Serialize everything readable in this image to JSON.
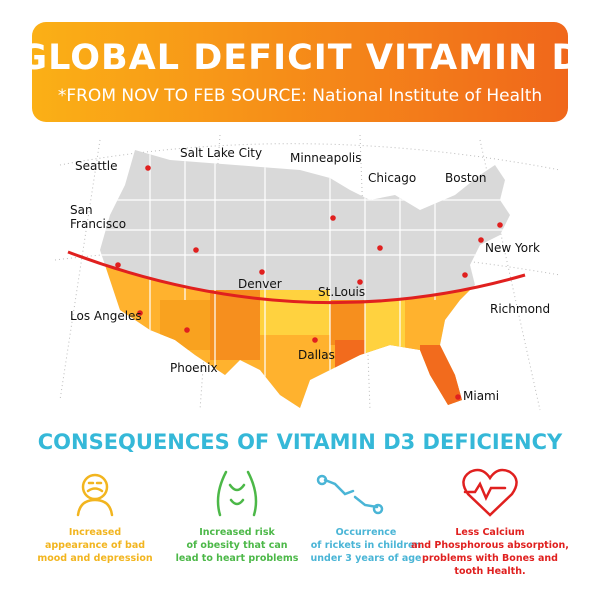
{
  "header": {
    "title": "GLOBAL DEFICIT VITAMIN D",
    "subtitle": "*FROM NOV TO FEB SOURCE: National Institute of Health"
  },
  "map": {
    "cities": [
      {
        "label": "Seattle"
      },
      {
        "label": "Salt Lake City"
      },
      {
        "label": "Minneapolis"
      },
      {
        "label": "Chicago"
      },
      {
        "label": "Boston"
      },
      {
        "label": "San Francisco"
      },
      {
        "label": "Denver"
      },
      {
        "label": "New York"
      },
      {
        "label": "St.Louis"
      },
      {
        "label": "Richmond"
      },
      {
        "label": "Los Angeles"
      },
      {
        "label": "Phoenix"
      },
      {
        "label": "Dallas"
      },
      {
        "label": "Miami"
      }
    ]
  },
  "consequences": {
    "title": "CONSEQUENCES OF VITAMIN D3 DEFICIENCY",
    "items": [
      {
        "lines": [
          "Increased",
          "appearance of bad",
          "mood and depression"
        ]
      },
      {
        "lines": [
          "Increased risk",
          "of obesity that can",
          "lead to heart problems"
        ]
      },
      {
        "lines": [
          "Occurrence",
          "of rickets in children",
          "under 3 years of age"
        ]
      },
      {
        "lines": [
          "Less Calcium",
          "and Phosphorous absorption,",
          "problems with Bones and",
          "tooth Health."
        ]
      }
    ]
  }
}
